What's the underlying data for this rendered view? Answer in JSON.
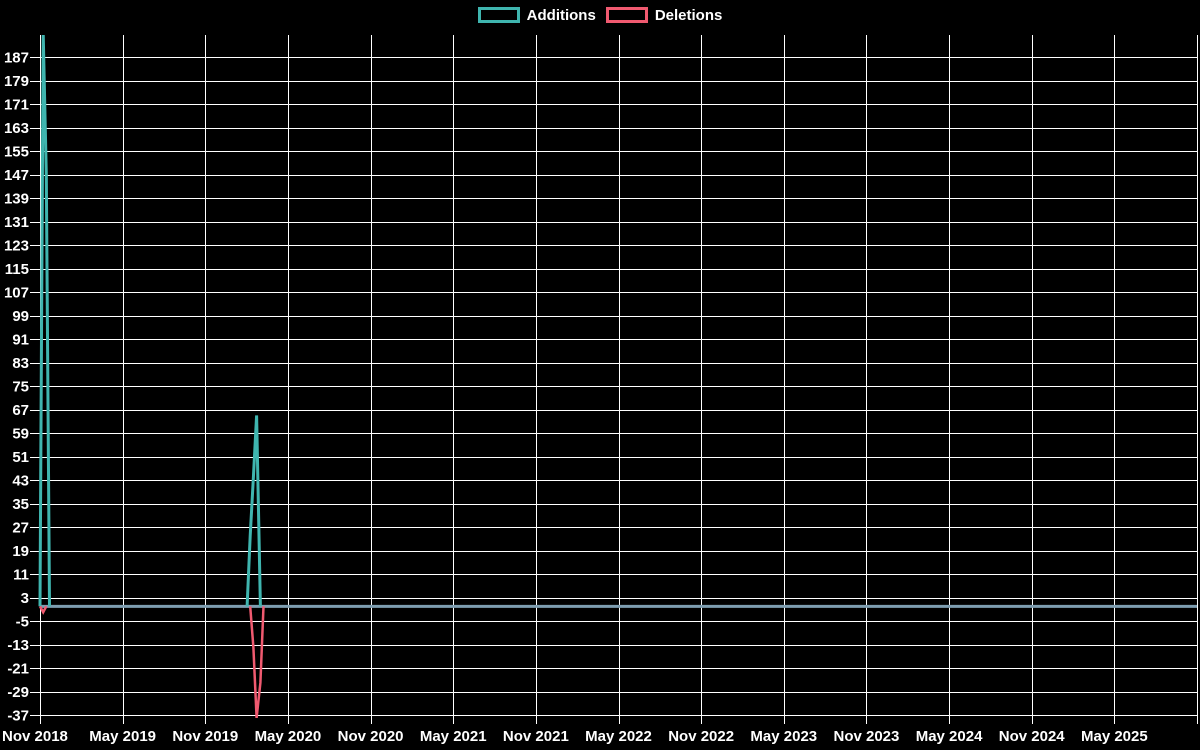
{
  "legend": {
    "items": [
      {
        "label": "Additions",
        "color": "#3fb5af"
      },
      {
        "label": "Deletions",
        "color": "#f05a70"
      }
    ]
  },
  "chart_data": {
    "type": "line",
    "title": "",
    "xlabel": "",
    "ylabel": "",
    "background_color": "#000000",
    "grid_color": "#ffffff",
    "text_color": "#ffffff",
    "zero_baseline_color": "#7d9db0",
    "legend_position": "top-center",
    "grid": "on",
    "x_axis": {
      "tick_labels": [
        "Nov 2018",
        "May 2019",
        "Nov 2019",
        "May 2020",
        "Nov 2020",
        "May 2021",
        "Nov 2021",
        "May 2022",
        "Nov 2022",
        "May 2023",
        "Nov 2023",
        "May 2024",
        "Nov 2024",
        "May 2025"
      ],
      "months_per_division": 6,
      "start_date": "2018-11-01",
      "end_date": "2025-11-01"
    },
    "y_axis": {
      "ticks": [
        187,
        179,
        171,
        163,
        155,
        147,
        139,
        131,
        123,
        115,
        107,
        99,
        91,
        83,
        75,
        67,
        59,
        51,
        43,
        35,
        27,
        19,
        11,
        3,
        -5,
        -13,
        -21,
        -29,
        -37
      ],
      "tick_step": 8,
      "ylim": [
        -39,
        195
      ]
    },
    "series": [
      {
        "name": "Additions",
        "color": "#3fb5af",
        "points": [
          [
            "2018-11-01",
            0
          ],
          [
            "2018-11-08",
            195
          ],
          [
            "2018-11-15",
            147
          ],
          [
            "2018-11-22",
            0
          ],
          [
            "2020-02-02",
            0
          ],
          [
            "2020-02-09",
            24
          ],
          [
            "2020-02-16",
            44
          ],
          [
            "2020-02-23",
            65
          ],
          [
            "2020-03-01",
            0
          ],
          [
            "2025-11-01",
            0
          ]
        ]
      },
      {
        "name": "Deletions",
        "color": "#f05a70",
        "points": [
          [
            "2018-11-01",
            0
          ],
          [
            "2018-11-08",
            -2
          ],
          [
            "2018-11-15",
            0
          ],
          [
            "2020-02-09",
            0
          ],
          [
            "2020-02-16",
            -14
          ],
          [
            "2020-02-23",
            -38
          ],
          [
            "2020-03-01",
            -26
          ],
          [
            "2020-03-08",
            0
          ],
          [
            "2025-11-01",
            0
          ]
        ]
      }
    ]
  }
}
